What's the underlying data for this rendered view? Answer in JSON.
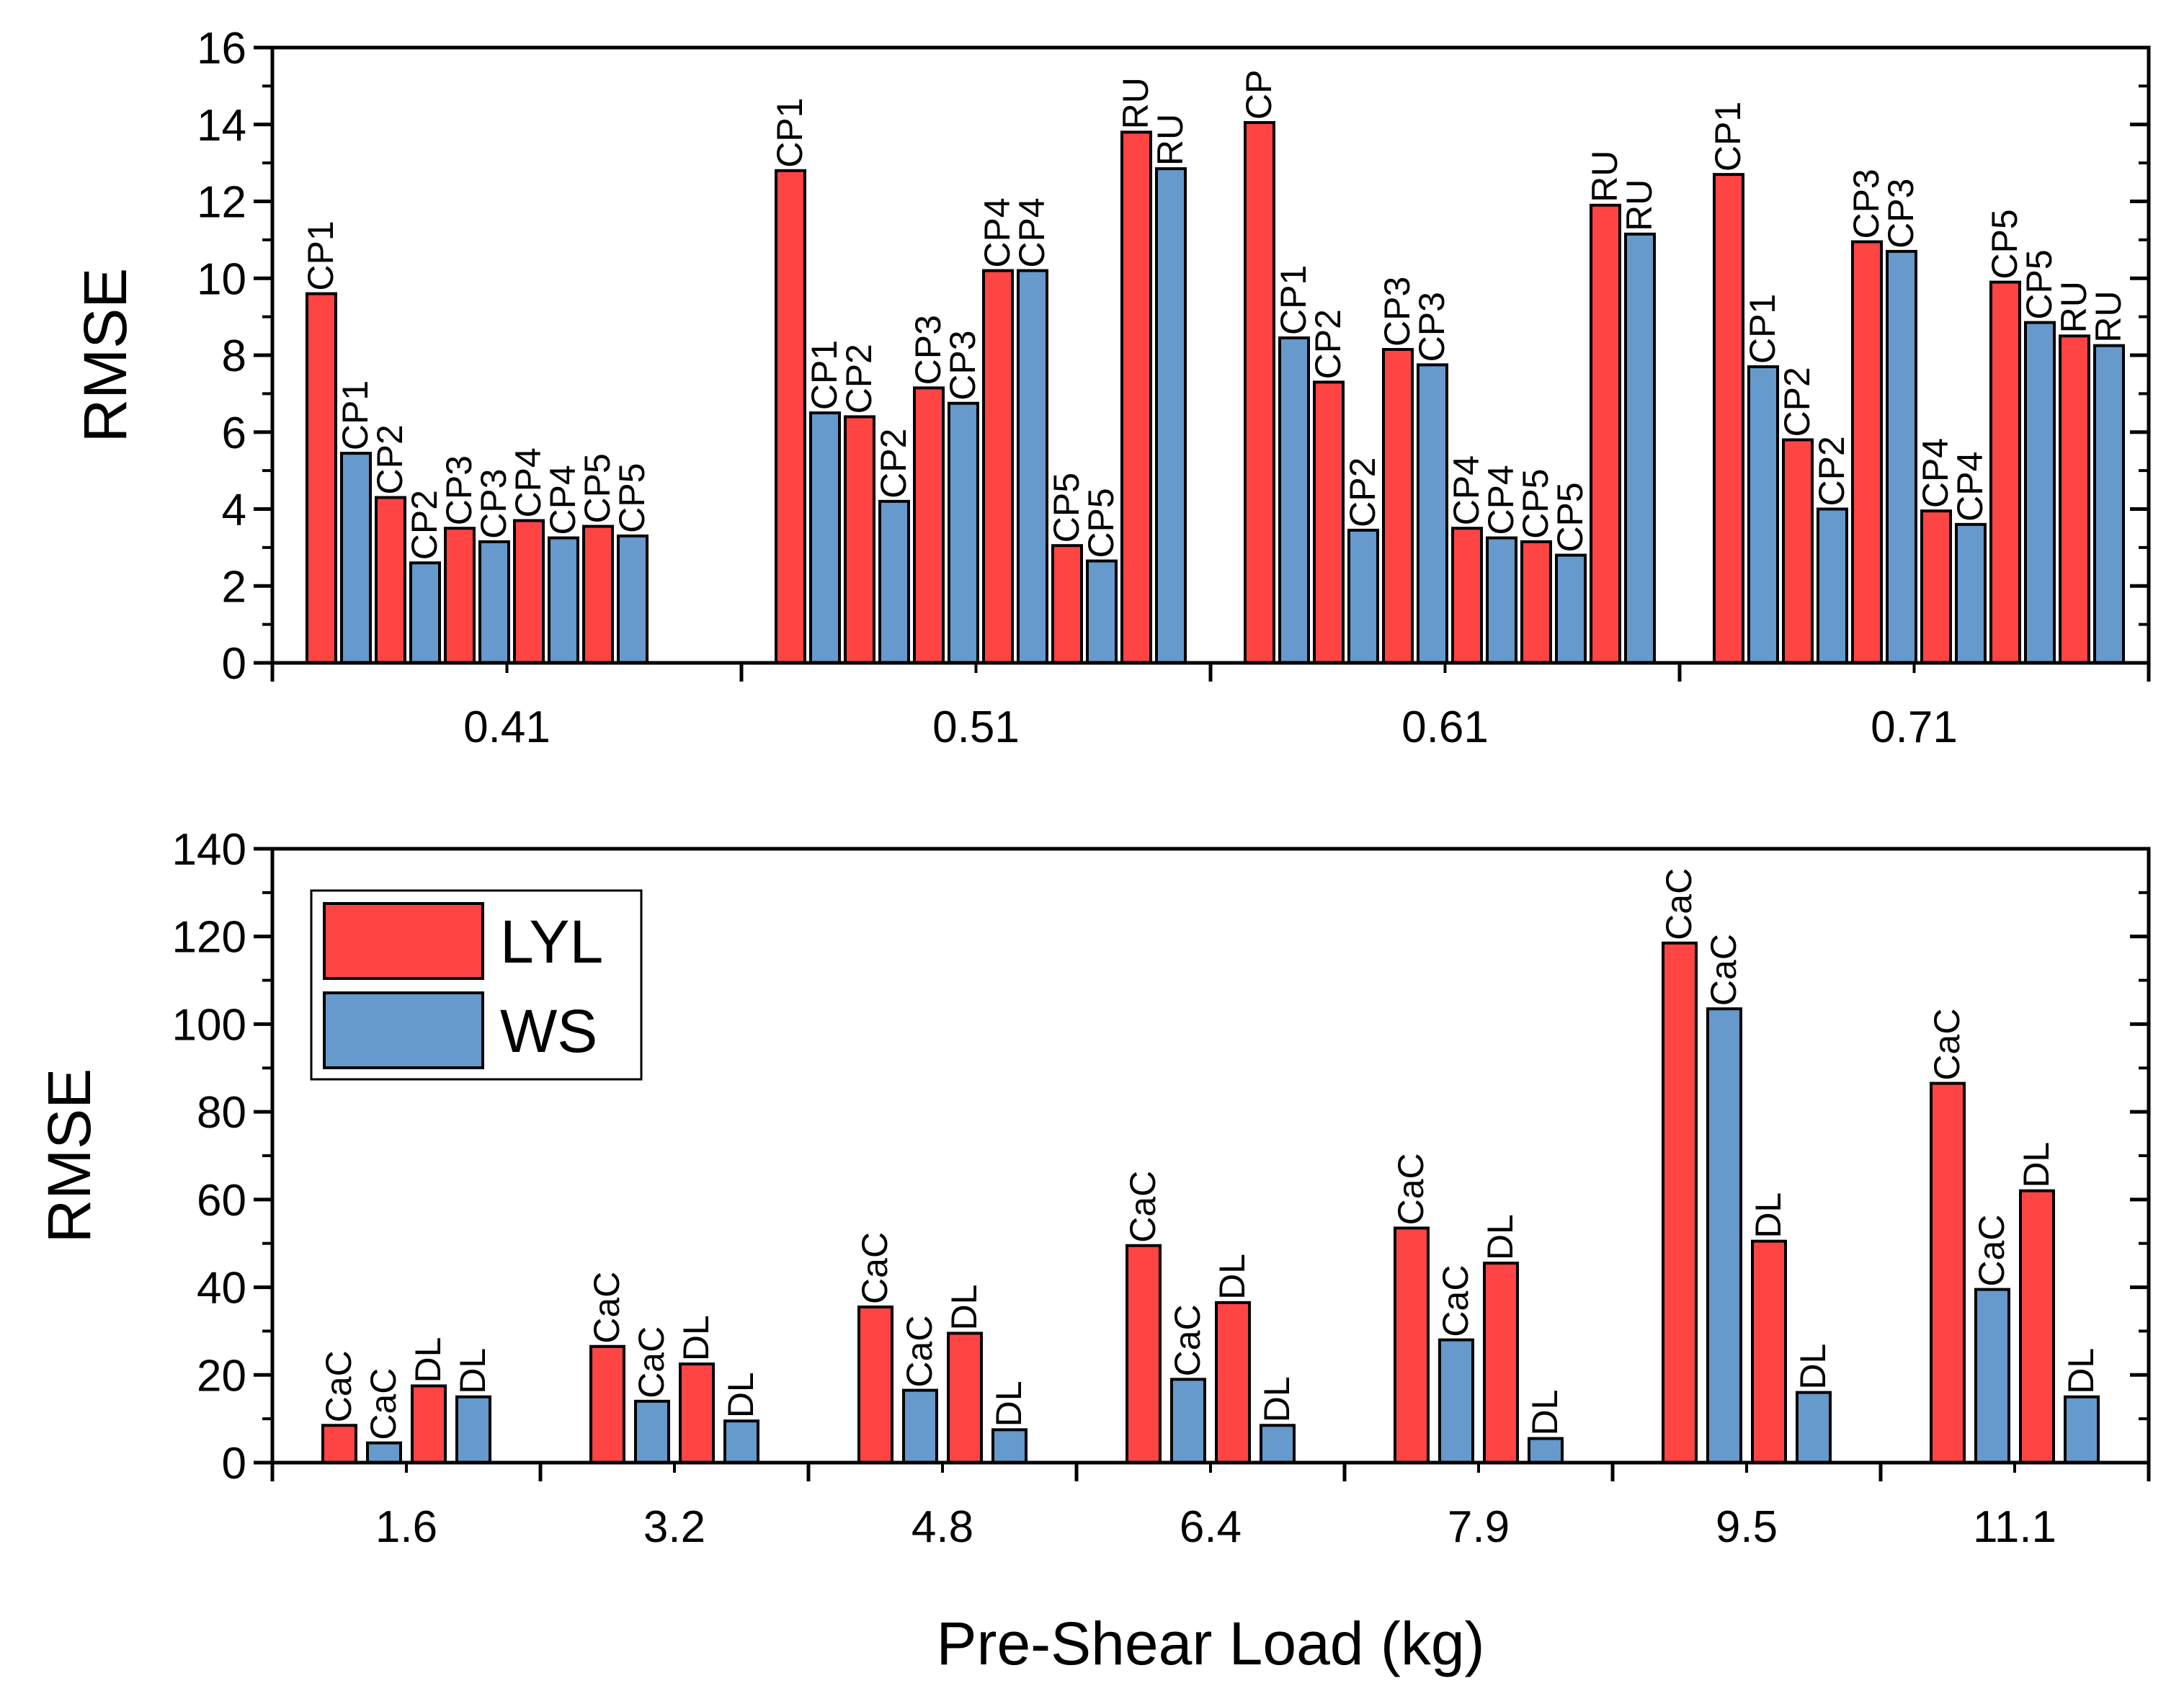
{
  "chart_data": [
    {
      "type": "bar",
      "title": "",
      "xlabel": "",
      "ylabel": "RMSE",
      "ylim": [
        0,
        16
      ],
      "yticks": [
        0,
        2,
        4,
        6,
        8,
        10,
        12,
        14,
        16
      ],
      "grid": false,
      "categories": [
        "0.41",
        "0.51",
        "0.61",
        "0.71"
      ],
      "groups": [
        {
          "category": "0.41",
          "bars": [
            {
              "series": "LYL",
              "value": 9.6,
              "label": "CP1"
            },
            {
              "series": "WS",
              "value": 5.45,
              "label": "CP1"
            },
            {
              "series": "LYL",
              "value": 4.3,
              "label": "CP2"
            },
            {
              "series": "WS",
              "value": 2.6,
              "label": "CP2"
            },
            {
              "series": "LYL",
              "value": 3.5,
              "label": "CP3"
            },
            {
              "series": "WS",
              "value": 3.15,
              "label": "CP3"
            },
            {
              "series": "LYL",
              "value": 3.7,
              "label": "CP4"
            },
            {
              "series": "WS",
              "value": 3.25,
              "label": "CP4"
            },
            {
              "series": "LYL",
              "value": 3.55,
              "label": "CP5"
            },
            {
              "series": "WS",
              "value": 3.3,
              "label": "CP5"
            }
          ]
        },
        {
          "category": "0.51",
          "bars": [
            {
              "series": "LYL",
              "value": 12.8,
              "label": "CP1"
            },
            {
              "series": "WS",
              "value": 6.5,
              "label": "CP1"
            },
            {
              "series": "LYL",
              "value": 6.4,
              "label": "CP2"
            },
            {
              "series": "WS",
              "value": 4.2,
              "label": "CP2"
            },
            {
              "series": "LYL",
              "value": 7.15,
              "label": "CP3"
            },
            {
              "series": "WS",
              "value": 6.75,
              "label": "CP3"
            },
            {
              "series": "LYL",
              "value": 10.2,
              "label": "CP4"
            },
            {
              "series": "WS",
              "value": 10.2,
              "label": "CP4"
            },
            {
              "series": "LYL",
              "value": 3.05,
              "label": "CP5"
            },
            {
              "series": "WS",
              "value": 2.65,
              "label": "CP5"
            },
            {
              "series": "LYL",
              "value": 13.8,
              "label": "RU"
            },
            {
              "series": "WS",
              "value": 12.85,
              "label": "RU"
            }
          ]
        },
        {
          "category": "0.61",
          "bars": [
            {
              "series": "LYL",
              "value": 14.05,
              "label": "CP"
            },
            {
              "series": "WS",
              "value": 8.45,
              "label": "CP1"
            },
            {
              "series": "LYL",
              "value": 7.3,
              "label": "CP2"
            },
            {
              "series": "WS",
              "value": 3.45,
              "label": "CP2"
            },
            {
              "series": "LYL",
              "value": 8.15,
              "label": "CP3"
            },
            {
              "series": "WS",
              "value": 7.75,
              "label": "CP3"
            },
            {
              "series": "LYL",
              "value": 3.5,
              "label": "CP4"
            },
            {
              "series": "WS",
              "value": 3.25,
              "label": "CP4"
            },
            {
              "series": "LYL",
              "value": 3.15,
              "label": "CP5"
            },
            {
              "series": "WS",
              "value": 2.8,
              "label": "CP5"
            },
            {
              "series": "LYL",
              "value": 11.9,
              "label": "RU"
            },
            {
              "series": "WS",
              "value": 11.15,
              "label": "RU"
            }
          ]
        },
        {
          "category": "0.71",
          "bars": [
            {
              "series": "LYL",
              "value": 12.7,
              "label": "CP1"
            },
            {
              "series": "WS",
              "value": 7.7,
              "label": "CP1"
            },
            {
              "series": "LYL",
              "value": 5.8,
              "label": "CP2"
            },
            {
              "series": "WS",
              "value": 4.0,
              "label": "CP2"
            },
            {
              "series": "LYL",
              "value": 10.95,
              "label": "CP3"
            },
            {
              "series": "WS",
              "value": 10.7,
              "label": "CP3"
            },
            {
              "series": "LYL",
              "value": 3.95,
              "label": "CP4"
            },
            {
              "series": "WS",
              "value": 3.6,
              "label": "CP4"
            },
            {
              "series": "LYL",
              "value": 9.9,
              "label": "CP5"
            },
            {
              "series": "WS",
              "value": 8.85,
              "label": "CP5"
            },
            {
              "series": "LYL",
              "value": 8.5,
              "label": "RU"
            },
            {
              "series": "WS",
              "value": 8.25,
              "label": "RU"
            }
          ]
        }
      ]
    },
    {
      "type": "bar",
      "title": "",
      "xlabel": "Pre-Shear Load (kg)",
      "ylabel": "RMSE",
      "ylim": [
        0,
        140
      ],
      "yticks": [
        0,
        20,
        40,
        60,
        80,
        100,
        120,
        140
      ],
      "grid": false,
      "legend": {
        "position": "top-left",
        "entries": [
          {
            "name": "LYL",
            "color": "#ff4444"
          },
          {
            "name": "WS",
            "color": "#6699cc"
          }
        ]
      },
      "categories": [
        "1.6",
        "3.2",
        "4.8",
        "6.4",
        "7.9",
        "9.5",
        "11.1"
      ],
      "groups": [
        {
          "category": "1.6",
          "bars": [
            {
              "series": "LYL",
              "value": 8.5,
              "label": "CaC"
            },
            {
              "series": "WS",
              "value": 4.5,
              "label": "CaC"
            },
            {
              "series": "LYL",
              "value": 17.5,
              "label": "DL"
            },
            {
              "series": "WS",
              "value": 15,
              "label": "DL"
            }
          ]
        },
        {
          "category": "3.2",
          "bars": [
            {
              "series": "LYL",
              "value": 26.5,
              "label": "CaC"
            },
            {
              "series": "WS",
              "value": 14,
              "label": "CaC"
            },
            {
              "series": "LYL",
              "value": 22.5,
              "label": "DL"
            },
            {
              "series": "WS",
              "value": 9.5,
              "label": "DL"
            }
          ]
        },
        {
          "category": "4.8",
          "bars": [
            {
              "series": "LYL",
              "value": 35.5,
              "label": "CaC"
            },
            {
              "series": "WS",
              "value": 16.5,
              "label": "CaC"
            },
            {
              "series": "LYL",
              "value": 29.5,
              "label": "DL"
            },
            {
              "series": "WS",
              "value": 7.5,
              "label": "DL"
            }
          ]
        },
        {
          "category": "6.4",
          "bars": [
            {
              "series": "LYL",
              "value": 49.5,
              "label": "CaC"
            },
            {
              "series": "WS",
              "value": 19,
              "label": "CaC"
            },
            {
              "series": "LYL",
              "value": 36.5,
              "label": "DL"
            },
            {
              "series": "WS",
              "value": 8.5,
              "label": "DL"
            }
          ]
        },
        {
          "category": "7.9",
          "bars": [
            {
              "series": "LYL",
              "value": 53.5,
              "label": "CaC"
            },
            {
              "series": "WS",
              "value": 28,
              "label": "CaC"
            },
            {
              "series": "LYL",
              "value": 45.5,
              "label": "DL"
            },
            {
              "series": "WS",
              "value": 5.5,
              "label": "DL"
            }
          ]
        },
        {
          "category": "9.5",
          "bars": [
            {
              "series": "LYL",
              "value": 118.5,
              "label": "CaC"
            },
            {
              "series": "WS",
              "value": 103.5,
              "label": "CaC"
            },
            {
              "series": "LYL",
              "value": 50.5,
              "label": "DL"
            },
            {
              "series": "WS",
              "value": 16,
              "label": "DL"
            }
          ]
        },
        {
          "category": "11.1",
          "bars": [
            {
              "series": "LYL",
              "value": 86.5,
              "label": "CaC"
            },
            {
              "series": "WS",
              "value": 39.5,
              "label": "CaC"
            },
            {
              "series": "LYL",
              "value": 62,
              "label": "DL"
            },
            {
              "series": "WS",
              "value": 15,
              "label": "DL"
            }
          ]
        }
      ]
    }
  ],
  "colors": {
    "LYL": "#ff4444",
    "WS": "#6699cc",
    "stroke": "#000000"
  }
}
